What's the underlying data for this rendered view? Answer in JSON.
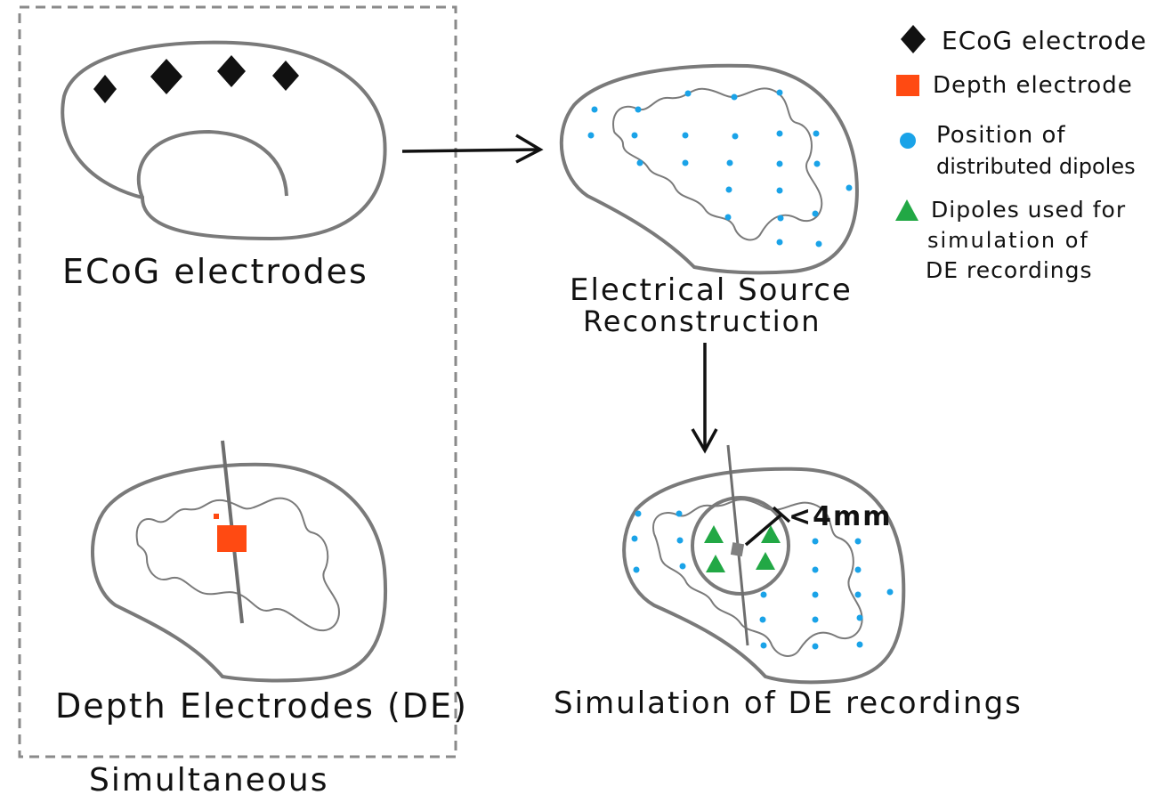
{
  "labels": {
    "ecog": "ECoG electrodes",
    "depth": "Depth Electrodes (DE)",
    "simultaneous": "Simultaneous",
    "esr_line1": "Electrical Source",
    "esr_line2": "Reconstruction",
    "simulation": "Simulation of DE recordings",
    "radius": "<4mm"
  },
  "legend": {
    "ecog_electrode": "ECoG electrode",
    "depth_electrode": "Depth electrode",
    "position_line1": "Position of",
    "position_line2": "distributed dipoles",
    "dipoles_line1": "Dipoles used for",
    "dipoles_line2": "simulation of",
    "dipoles_line3": "DE recordings"
  },
  "colors": {
    "outline": "#7a7a7a",
    "ink": "#111111",
    "ecog_marker": "#111111",
    "depth_marker": "#ff4a12",
    "dipole_marker": "#1aa3e8",
    "sim_dipole_marker": "#22a845",
    "center_marker": "#808080"
  },
  "icons": {
    "ecog_marker": "black-diamond",
    "depth_marker": "orange-square",
    "dipole_marker": "blue-dot",
    "sim_dipole_marker": "green-triangle"
  }
}
